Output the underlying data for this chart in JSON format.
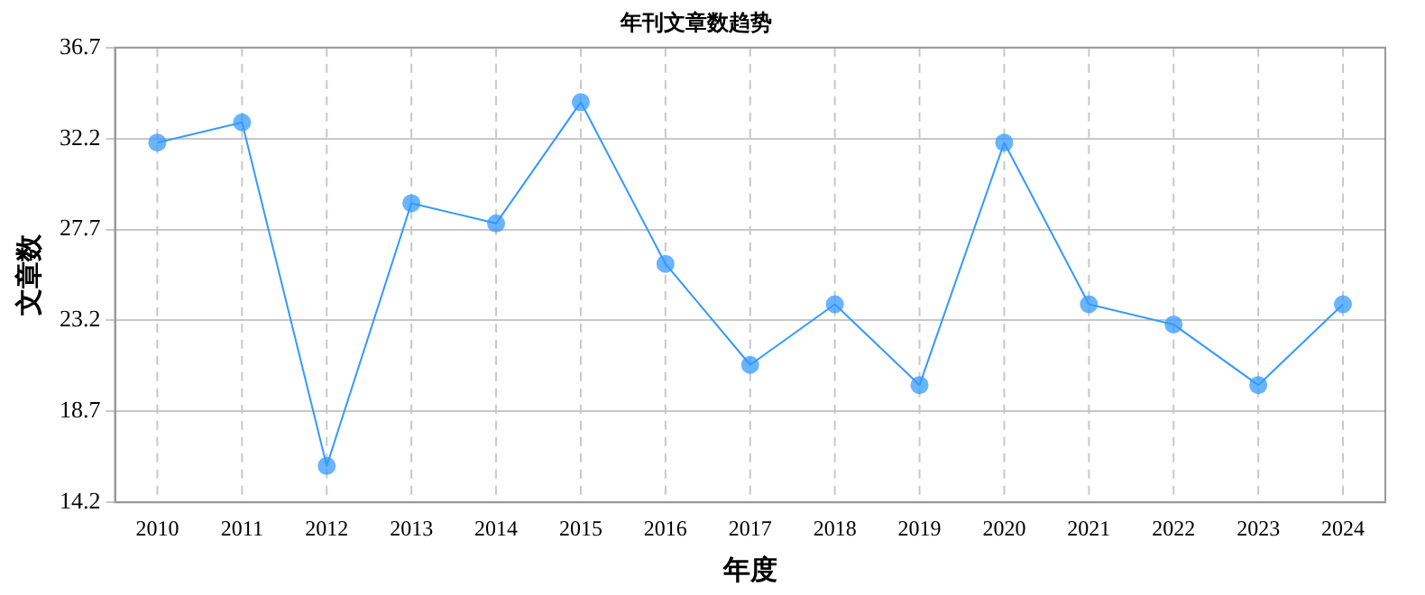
{
  "chart_data": {
    "type": "line",
    "title": "年刊文章数趋势",
    "xlabel": "年度",
    "ylabel": "文章数",
    "categories": [
      "2010",
      "2011",
      "2012",
      "2013",
      "2014",
      "2015",
      "2016",
      "2017",
      "2018",
      "2019",
      "2020",
      "2021",
      "2022",
      "2023",
      "2024"
    ],
    "series": [
      {
        "color": "#3399ff",
        "values": [
          32,
          33,
          16,
          29,
          28,
          34,
          26,
          21,
          24,
          20,
          32,
          24,
          23,
          20,
          24
        ]
      }
    ],
    "ylim": [
      14.2,
      36.7
    ],
    "yticks": [
      14.2,
      18.7,
      23.2,
      27.7,
      32.2,
      36.7
    ],
    "grid": true,
    "marker": "circle",
    "line_style": "solid",
    "legend": false
  }
}
